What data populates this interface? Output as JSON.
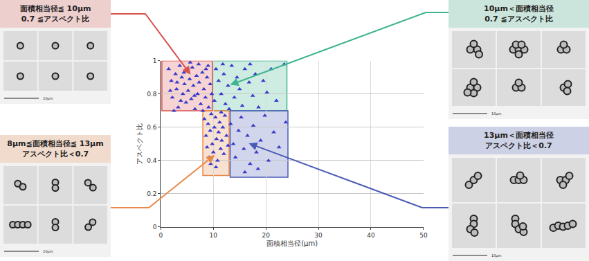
{
  "chart_data": {
    "type": "scatter",
    "x_label": "面積相当径(μm)",
    "y_label": "アスペクト比",
    "xlim": [
      0,
      50
    ],
    "xticks": [
      0,
      10,
      20,
      30,
      40,
      50
    ],
    "ylim": [
      0,
      1
    ],
    "yticks": [
      0,
      0.2,
      0.4,
      0.6,
      0.8,
      1
    ],
    "grid": true,
    "marker": "triangle-up",
    "color": "#3a3acc",
    "x": [
      1.5,
      2,
      2.2,
      2.8,
      3,
      3.3,
      3.6,
      4,
      4.2,
      4.5,
      4.8,
      5,
      5.2,
      5.5,
      5.8,
      6,
      6.2,
      6.5,
      6.8,
      7,
      7.3,
      7.6,
      7.9,
      8.2,
      8.5,
      8.8,
      9.1,
      9.4,
      9.7,
      2.5,
      3.8,
      5.6,
      7.2,
      8,
      9,
      1.8,
      4.4,
      6.4,
      8.6,
      3.1,
      10.5,
      11,
      11.5,
      12,
      12.3,
      12.8,
      13.5,
      14,
      14.5,
      15,
      15.5,
      16,
      16.8,
      17.5,
      18,
      18.6,
      19.5,
      20.2,
      21,
      22,
      23.5,
      10.2,
      11.8,
      13,
      17,
      8.3,
      8.6,
      8.8,
      9,
      9.2,
      9.4,
      9.6,
      9.8,
      10,
      10.2,
      10.4,
      10.6,
      10.8,
      11,
      11.2,
      11.4,
      11.6,
      11.8,
      12,
      12.2,
      12.5,
      12.8,
      9.5,
      10.5,
      11.5,
      13.3,
      13.8,
      14.2,
      14.8,
      15.3,
      15.8,
      16.5,
      17,
      17.6,
      18.2,
      19,
      19.8,
      20.5,
      21.5,
      22.5,
      23.8,
      16,
      18.5
    ],
    "y": [
      0.95,
      0.88,
      0.78,
      0.92,
      0.83,
      0.72,
      0.97,
      0.9,
      0.8,
      0.86,
      0.75,
      0.94,
      0.82,
      0.89,
      0.77,
      0.96,
      0.85,
      0.71,
      0.91,
      0.8,
      0.87,
      0.74,
      0.93,
      0.83,
      0.78,
      0.9,
      0.72,
      0.86,
      0.8,
      0.7,
      0.76,
      0.99,
      0.98,
      0.7,
      0.97,
      0.82,
      0.93,
      0.79,
      0.95,
      0.87,
      0.95,
      0.88,
      0.8,
      0.92,
      0.74,
      0.85,
      0.97,
      0.78,
      0.9,
      0.83,
      0.73,
      0.95,
      0.87,
      0.79,
      0.92,
      0.72,
      0.88,
      0.81,
      0.95,
      0.76,
      0.98,
      0.76,
      0.98,
      0.71,
      0.98,
      0.65,
      0.55,
      0.48,
      0.62,
      0.42,
      0.58,
      0.68,
      0.5,
      0.45,
      0.6,
      0.66,
      0.53,
      0.4,
      0.57,
      0.63,
      0.47,
      0.52,
      0.6,
      0.44,
      0.67,
      0.55,
      0.49,
      0.38,
      0.36,
      0.69,
      0.62,
      0.5,
      0.42,
      0.58,
      0.66,
      0.47,
      0.55,
      0.38,
      0.61,
      0.45,
      0.52,
      0.67,
      0.4,
      0.57,
      0.48,
      0.63,
      0.33,
      0.35
    ],
    "regions": [
      {
        "x": [
          0.2,
          9.8
        ],
        "y": [
          0.7,
          1
        ],
        "color": "#d9534f",
        "label": [
          "面積相当径≦ 10μm",
          "0.7 ≦アスペクト比"
        ],
        "scale_label": "10μm"
      },
      {
        "x": [
          10,
          24
        ],
        "y": [
          0.7,
          1
        ],
        "color": "#3fb58f",
        "label": [
          "10μm＜面積相当径",
          "0.7 ≦アスペクト比"
        ],
        "scale_label": "10μm"
      },
      {
        "x": [
          8,
          13
        ],
        "y": [
          0.31,
          0.7
        ],
        "color": "#e8894a",
        "label": [
          "8μm≦面積相当径≦ 13μm",
          "アスペクト比＜0.7"
        ],
        "scale_label": "10μm"
      },
      {
        "x": [
          13.2,
          24.2
        ],
        "y": [
          0.3,
          0.7
        ],
        "color": "#4a5bb5",
        "label": [
          "13μm＜面積相当径",
          "アスペクト比＜0.7"
        ],
        "scale_label": "10μm"
      }
    ]
  }
}
